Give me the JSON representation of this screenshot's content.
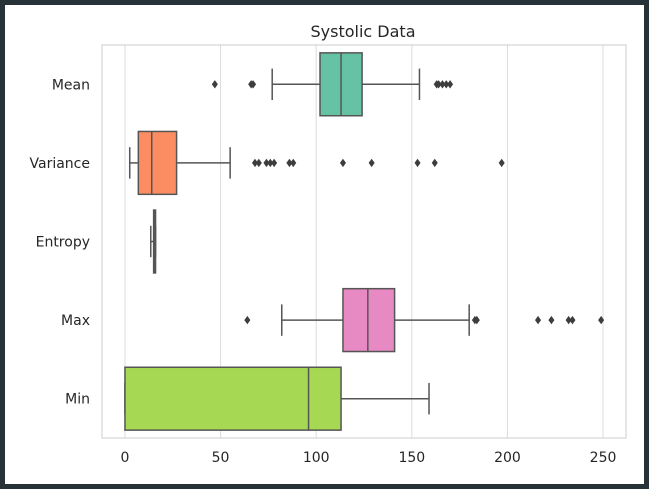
{
  "chart_data": {
    "type": "boxplot",
    "orientation": "horizontal",
    "title": "Systolic Data",
    "xlabel": "",
    "ylabel": "",
    "xlim": [
      -12,
      262
    ],
    "xticks": [
      0,
      50,
      100,
      150,
      200,
      250
    ],
    "grid": "vertical",
    "categories": [
      "Mean",
      "Variance",
      "Entropy",
      "Max",
      "Min"
    ],
    "series": [
      {
        "label": "Mean",
        "color": "#66c2a5",
        "whisker_low": 77,
        "q1": 102,
        "median": 113,
        "q3": 124,
        "whisker_high": 154,
        "outliers": [
          47,
          66,
          67,
          163,
          164,
          166,
          168,
          170
        ]
      },
      {
        "label": "Variance",
        "color": "#fc8d62",
        "whisker_low": 2.5,
        "q1": 7,
        "median": 14,
        "q3": 27,
        "whisker_high": 55,
        "outliers": [
          68,
          70,
          74,
          76,
          78,
          86,
          88,
          114,
          129,
          153,
          162,
          197
        ]
      },
      {
        "label": "Entropy",
        "color": "#8da0cb",
        "whisker_low": 13.5,
        "q1": 15,
        "median": 15.5,
        "q3": 16,
        "whisker_high": 16,
        "outliers": []
      },
      {
        "label": "Max",
        "color": "#e78ac3",
        "whisker_low": 82,
        "q1": 114,
        "median": 127,
        "q3": 141,
        "whisker_high": 180,
        "outliers": [
          64,
          183,
          184,
          216,
          223,
          232,
          234,
          249
        ]
      },
      {
        "label": "Min",
        "color": "#a6d854",
        "whisker_low": 0,
        "q1": 0,
        "median": 96,
        "q3": 113,
        "whisker_high": 159,
        "outliers": []
      }
    ]
  }
}
